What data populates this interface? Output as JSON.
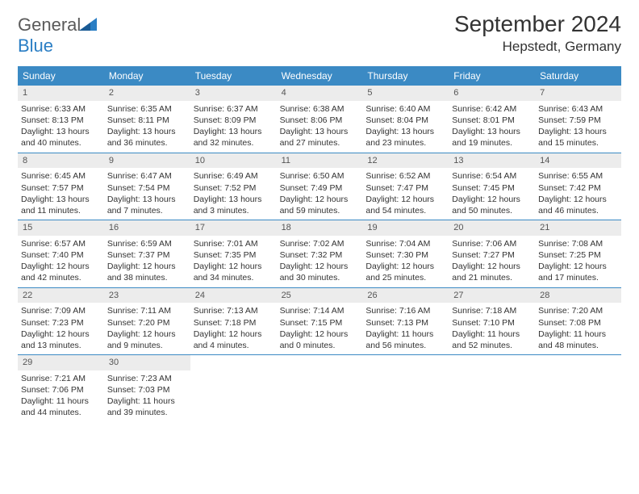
{
  "logo": {
    "text1": "General",
    "text2": "Blue"
  },
  "title": "September 2024",
  "location": "Hepstedt, Germany",
  "headers": [
    "Sunday",
    "Monday",
    "Tuesday",
    "Wednesday",
    "Thursday",
    "Friday",
    "Saturday"
  ],
  "colors": {
    "header_bg": "#3b8ac4",
    "header_text": "#ffffff",
    "date_bg": "#ececec",
    "border": "#3b8ac4",
    "text": "#333333",
    "logo_gray": "#5a5a5a",
    "logo_blue": "#2a7ec4"
  },
  "weeks": [
    [
      {
        "d": "1",
        "sr": "Sunrise: 6:33 AM",
        "ss": "Sunset: 8:13 PM",
        "dl": "Daylight: 13 hours and 40 minutes."
      },
      {
        "d": "2",
        "sr": "Sunrise: 6:35 AM",
        "ss": "Sunset: 8:11 PM",
        "dl": "Daylight: 13 hours and 36 minutes."
      },
      {
        "d": "3",
        "sr": "Sunrise: 6:37 AM",
        "ss": "Sunset: 8:09 PM",
        "dl": "Daylight: 13 hours and 32 minutes."
      },
      {
        "d": "4",
        "sr": "Sunrise: 6:38 AM",
        "ss": "Sunset: 8:06 PM",
        "dl": "Daylight: 13 hours and 27 minutes."
      },
      {
        "d": "5",
        "sr": "Sunrise: 6:40 AM",
        "ss": "Sunset: 8:04 PM",
        "dl": "Daylight: 13 hours and 23 minutes."
      },
      {
        "d": "6",
        "sr": "Sunrise: 6:42 AM",
        "ss": "Sunset: 8:01 PM",
        "dl": "Daylight: 13 hours and 19 minutes."
      },
      {
        "d": "7",
        "sr": "Sunrise: 6:43 AM",
        "ss": "Sunset: 7:59 PM",
        "dl": "Daylight: 13 hours and 15 minutes."
      }
    ],
    [
      {
        "d": "8",
        "sr": "Sunrise: 6:45 AM",
        "ss": "Sunset: 7:57 PM",
        "dl": "Daylight: 13 hours and 11 minutes."
      },
      {
        "d": "9",
        "sr": "Sunrise: 6:47 AM",
        "ss": "Sunset: 7:54 PM",
        "dl": "Daylight: 13 hours and 7 minutes."
      },
      {
        "d": "10",
        "sr": "Sunrise: 6:49 AM",
        "ss": "Sunset: 7:52 PM",
        "dl": "Daylight: 13 hours and 3 minutes."
      },
      {
        "d": "11",
        "sr": "Sunrise: 6:50 AM",
        "ss": "Sunset: 7:49 PM",
        "dl": "Daylight: 12 hours and 59 minutes."
      },
      {
        "d": "12",
        "sr": "Sunrise: 6:52 AM",
        "ss": "Sunset: 7:47 PM",
        "dl": "Daylight: 12 hours and 54 minutes."
      },
      {
        "d": "13",
        "sr": "Sunrise: 6:54 AM",
        "ss": "Sunset: 7:45 PM",
        "dl": "Daylight: 12 hours and 50 minutes."
      },
      {
        "d": "14",
        "sr": "Sunrise: 6:55 AM",
        "ss": "Sunset: 7:42 PM",
        "dl": "Daylight: 12 hours and 46 minutes."
      }
    ],
    [
      {
        "d": "15",
        "sr": "Sunrise: 6:57 AM",
        "ss": "Sunset: 7:40 PM",
        "dl": "Daylight: 12 hours and 42 minutes."
      },
      {
        "d": "16",
        "sr": "Sunrise: 6:59 AM",
        "ss": "Sunset: 7:37 PM",
        "dl": "Daylight: 12 hours and 38 minutes."
      },
      {
        "d": "17",
        "sr": "Sunrise: 7:01 AM",
        "ss": "Sunset: 7:35 PM",
        "dl": "Daylight: 12 hours and 34 minutes."
      },
      {
        "d": "18",
        "sr": "Sunrise: 7:02 AM",
        "ss": "Sunset: 7:32 PM",
        "dl": "Daylight: 12 hours and 30 minutes."
      },
      {
        "d": "19",
        "sr": "Sunrise: 7:04 AM",
        "ss": "Sunset: 7:30 PM",
        "dl": "Daylight: 12 hours and 25 minutes."
      },
      {
        "d": "20",
        "sr": "Sunrise: 7:06 AM",
        "ss": "Sunset: 7:27 PM",
        "dl": "Daylight: 12 hours and 21 minutes."
      },
      {
        "d": "21",
        "sr": "Sunrise: 7:08 AM",
        "ss": "Sunset: 7:25 PM",
        "dl": "Daylight: 12 hours and 17 minutes."
      }
    ],
    [
      {
        "d": "22",
        "sr": "Sunrise: 7:09 AM",
        "ss": "Sunset: 7:23 PM",
        "dl": "Daylight: 12 hours and 13 minutes."
      },
      {
        "d": "23",
        "sr": "Sunrise: 7:11 AM",
        "ss": "Sunset: 7:20 PM",
        "dl": "Daylight: 12 hours and 9 minutes."
      },
      {
        "d": "24",
        "sr": "Sunrise: 7:13 AM",
        "ss": "Sunset: 7:18 PM",
        "dl": "Daylight: 12 hours and 4 minutes."
      },
      {
        "d": "25",
        "sr": "Sunrise: 7:14 AM",
        "ss": "Sunset: 7:15 PM",
        "dl": "Daylight: 12 hours and 0 minutes."
      },
      {
        "d": "26",
        "sr": "Sunrise: 7:16 AM",
        "ss": "Sunset: 7:13 PM",
        "dl": "Daylight: 11 hours and 56 minutes."
      },
      {
        "d": "27",
        "sr": "Sunrise: 7:18 AM",
        "ss": "Sunset: 7:10 PM",
        "dl": "Daylight: 11 hours and 52 minutes."
      },
      {
        "d": "28",
        "sr": "Sunrise: 7:20 AM",
        "ss": "Sunset: 7:08 PM",
        "dl": "Daylight: 11 hours and 48 minutes."
      }
    ],
    [
      {
        "d": "29",
        "sr": "Sunrise: 7:21 AM",
        "ss": "Sunset: 7:06 PM",
        "dl": "Daylight: 11 hours and 44 minutes."
      },
      {
        "d": "30",
        "sr": "Sunrise: 7:23 AM",
        "ss": "Sunset: 7:03 PM",
        "dl": "Daylight: 11 hours and 39 minutes."
      },
      null,
      null,
      null,
      null,
      null
    ]
  ]
}
